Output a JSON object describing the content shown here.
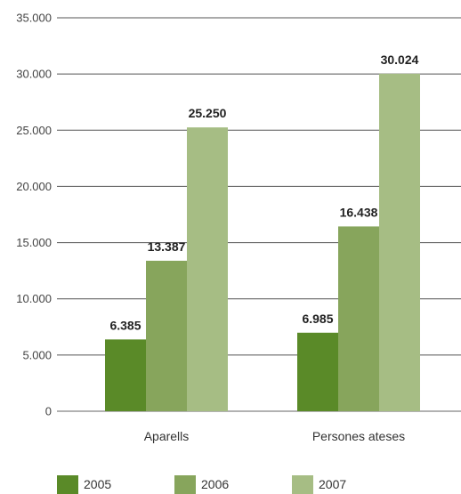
{
  "chart_data": {
    "type": "bar",
    "categories": [
      "Aparells",
      "Persones ateses"
    ],
    "series": [
      {
        "name": "2005",
        "values": [
          6385,
          6985
        ],
        "labels": [
          "6.385",
          "6.985"
        ],
        "color": "#5a8a28"
      },
      {
        "name": "2006",
        "values": [
          13387,
          16438
        ],
        "labels": [
          "13.387",
          "16.438"
        ],
        "color": "#87a55c"
      },
      {
        "name": "2007",
        "values": [
          25250,
          30024
        ],
        "labels": [
          "25.250",
          "30.024"
        ],
        "color": "#a6bd84"
      }
    ],
    "ylim": [
      0,
      35000
    ],
    "yticks": [
      0,
      5000,
      10000,
      15000,
      20000,
      25000,
      30000,
      35000
    ],
    "ytick_labels": [
      "0",
      "5.000",
      "10.000",
      "15.000",
      "20.000",
      "25.000",
      "30.000",
      "35.000"
    ],
    "title": "",
    "xlabel": "",
    "ylabel": "",
    "grid": true,
    "legend": "bottom"
  }
}
